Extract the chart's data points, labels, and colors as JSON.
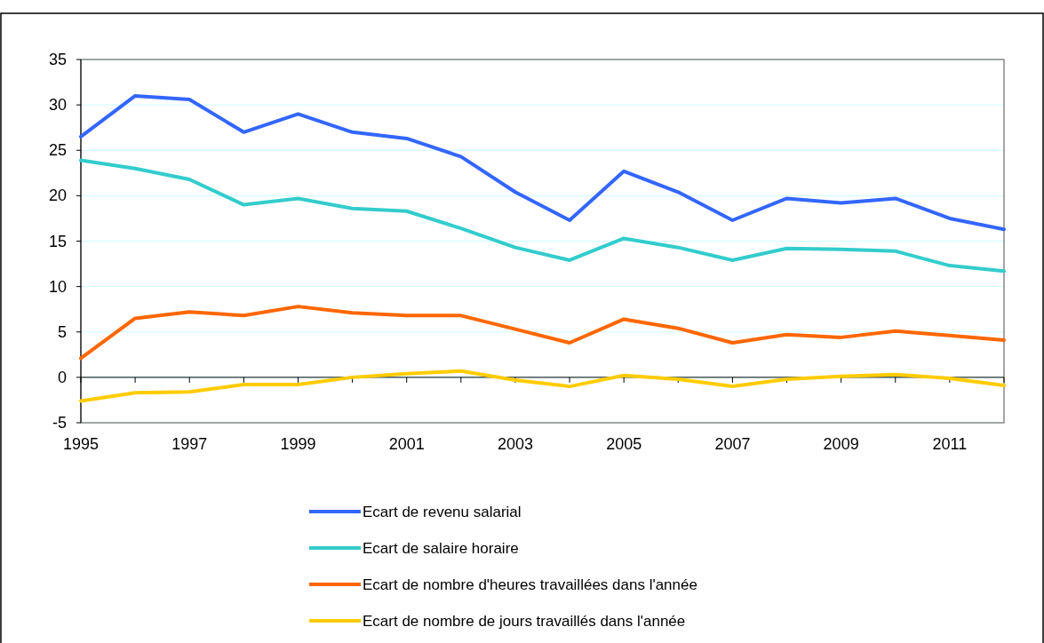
{
  "chart_data": {
    "type": "line",
    "x": [
      1995,
      1996,
      1997,
      1998,
      1999,
      2000,
      2001,
      2002,
      2003,
      2004,
      2005,
      2006,
      2007,
      2008,
      2009,
      2010,
      2011,
      2012
    ],
    "series": [
      {
        "name": "Ecart de revenu salarial",
        "color": "#3366ff",
        "values": [
          26.5,
          31,
          30.6,
          27,
          29,
          27,
          26.3,
          24.3,
          20.4,
          17.3,
          22.7,
          20.4,
          17.3,
          19.7,
          19.2,
          19.7,
          17.5,
          16.3
        ]
      },
      {
        "name": "Ecart de salaire horaire",
        "color": "#33cccc",
        "values": [
          23.9,
          23.0,
          21.8,
          19.0,
          19.7,
          18.6,
          18.3,
          16.4,
          14.3,
          12.9,
          15.3,
          14.3,
          12.9,
          14.2,
          14.1,
          13.9,
          12.3,
          11.7
        ]
      },
      {
        "name": "Ecart de nombre d'heures travaillées dans l'année",
        "color": "#ff6600",
        "values": [
          2.1,
          6.5,
          7.2,
          6.8,
          7.8,
          7.1,
          6.8,
          6.8,
          5.3,
          3.8,
          6.4,
          5.4,
          3.8,
          4.7,
          4.4,
          5.1,
          4.6,
          4.1
        ]
      },
      {
        "name": "Ecart de nombre de jours travaillés dans l'année",
        "color": "#ffcc00",
        "values": [
          -2.6,
          -1.7,
          -1.6,
          -0.8,
          -0.8,
          0,
          0.4,
          0.7,
          -0.3,
          -1.0,
          0.2,
          -0.2,
          -1.0,
          -0.2,
          0.1,
          0.3,
          -0.1,
          -0.9
        ]
      }
    ],
    "xlim": [
      1995,
      2012
    ],
    "xticks": [
      1995,
      {
        "value": 1996,
        "label": null
      },
      1997,
      {
        "value": 1998,
        "label": null
      },
      1999,
      {
        "value": 2000,
        "label": null
      },
      2001,
      {
        "value": 2002,
        "label": null
      },
      2003,
      {
        "value": 2004,
        "label": null
      },
      2005,
      {
        "value": 2006,
        "label": null
      },
      2007,
      {
        "value": 2008,
        "label": null
      },
      2009,
      {
        "value": 2010,
        "label": null
      },
      2011,
      {
        "value": 2012,
        "label": null
      }
    ],
    "ylim": [
      -5,
      35
    ],
    "yticks": [
      -5,
      0,
      5,
      10,
      15,
      20,
      25,
      30,
      35
    ],
    "grid": "y",
    "legend": "bottom",
    "marker": "none",
    "line_style": "solid"
  }
}
